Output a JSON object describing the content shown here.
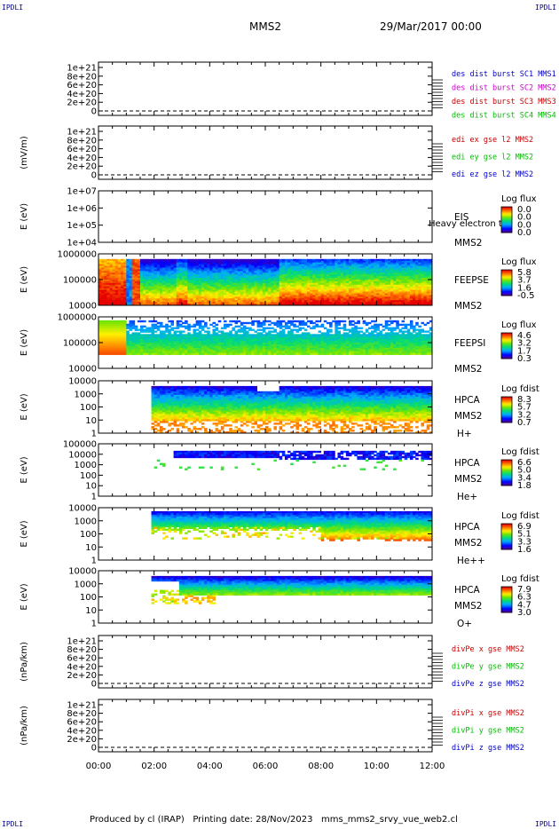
{
  "header": {
    "corner_tl": "IPDLI",
    "corner_tr": "IPDLI",
    "corner_bl": "IPDLI",
    "corner_br": "IPDLI",
    "spacecraft": "MMS2",
    "date": "29/Mar/2017 00:00"
  },
  "footer": {
    "text": "Produced by cl (IRAP)   Printing date: 28/Nov/2023   mms_mms2_srvy_vue_web2.cl"
  },
  "chart_data": {
    "type": "multi-panel",
    "x_ticks": [
      "00:00",
      "02:00",
      "04:00",
      "06:00",
      "08:00",
      "10:00",
      "12:00"
    ],
    "x_range_hours": [
      0,
      12
    ],
    "panels": [
      {
        "type": "line",
        "ylabel": "",
        "ticks": [
          "1e+21",
          "8e+20",
          "6e+20",
          "4e+20",
          "2e+20",
          "0"
        ],
        "legend": [
          {
            "name": "des dist burst SC1 MMS1",
            "color": "#0000cc"
          },
          {
            "name": "des dist burst SC2 MMS2",
            "color": "#cc00cc"
          },
          {
            "name": "des dist burst SC3 MMS3",
            "color": "#cc0000"
          },
          {
            "name": "des dist burst SC4 MMS4",
            "color": "#00bb00"
          }
        ]
      },
      {
        "type": "line",
        "ylabel": "(mV/m)",
        "ticks": [
          "1e+21",
          "8e+20",
          "6e+20",
          "4e+20",
          "2e+20",
          "0"
        ],
        "legend": [
          {
            "name": "edi ex gse l2 MMS2",
            "color": "#cc0000"
          },
          {
            "name": "edi ey gse l2 MMS2",
            "color": "#00bb00"
          },
          {
            "name": "edi ez gse l2 MMS2",
            "color": "#0000cc"
          }
        ]
      },
      {
        "type": "heatmap",
        "ylabel": "E (eV)",
        "ticks": [
          "1e+07",
          "1e+06",
          "1e+05",
          "1e+04"
        ],
        "labels": [
          "EIS",
          "MMS2"
        ],
        "overlap_label": "Heavy electron to",
        "cb_title": "Log flux",
        "cb_ticks": [
          "0.0",
          "0.0",
          "0.0",
          "0.0"
        ]
      },
      {
        "type": "heatmap",
        "ylabel": "E (eV)",
        "ticks": [
          "1000000",
          "100000",
          "10000"
        ],
        "labels": [
          "FEEPSE",
          "MMS2"
        ],
        "cb_title": "Log flux",
        "cb_ticks": [
          "5.8",
          "3.7",
          "1.6",
          "-0.5"
        ]
      },
      {
        "type": "heatmap",
        "ylabel": "E (eV)",
        "ticks": [
          "1000000",
          "100000",
          "10000"
        ],
        "labels": [
          "FEEPSI",
          "MMS2"
        ],
        "cb_title": "Log flux",
        "cb_ticks": [
          "4.6",
          "3.2",
          "1.7",
          "0.3"
        ]
      },
      {
        "type": "heatmap",
        "ylabel": "E (eV)",
        "ticks": [
          "10000",
          "1000",
          "100",
          "10",
          "1"
        ],
        "labels": [
          "HPCA",
          "MMS2",
          "H+"
        ],
        "cb_title": "Log fdist",
        "cb_ticks": [
          "8.3",
          "5.7",
          "3.2",
          "0.7"
        ]
      },
      {
        "type": "heatmap",
        "ylabel": "E (eV)",
        "ticks": [
          "100000",
          "10000",
          "1000",
          "100",
          "10",
          "1"
        ],
        "labels": [
          "HPCA",
          "MMS2",
          "He+"
        ],
        "cb_title": "Log fdist",
        "cb_ticks": [
          "6.6",
          "5.0",
          "3.4",
          "1.8"
        ]
      },
      {
        "type": "heatmap",
        "ylabel": "E (eV)",
        "ticks": [
          "10000",
          "1000",
          "100",
          "10",
          "1"
        ],
        "labels": [
          "HPCA",
          "MMS2",
          "He++"
        ],
        "cb_title": "Log fdist",
        "cb_ticks": [
          "6.9",
          "5.1",
          "3.3",
          "1.6"
        ]
      },
      {
        "type": "heatmap",
        "ylabel": "E (eV)",
        "ticks": [
          "10000",
          "1000",
          "100",
          "10",
          "1"
        ],
        "labels": [
          "HPCA",
          "MMS2",
          "O+"
        ],
        "cb_title": "Log fdist",
        "cb_ticks": [
          "7.9",
          "6.3",
          "4.7",
          "3.0"
        ]
      },
      {
        "type": "line",
        "ylabel": "(nPa/km)",
        "ticks": [
          "1e+21",
          "8e+20",
          "6e+20",
          "4e+20",
          "2e+20",
          "0"
        ],
        "legend": [
          {
            "name": "divPe x gse MMS2",
            "color": "#cc0000"
          },
          {
            "name": "divPe y gse MMS2",
            "color": "#00bb00"
          },
          {
            "name": "divPe z gse MMS2",
            "color": "#0000cc"
          }
        ]
      },
      {
        "type": "line",
        "ylabel": "(nPa/km)",
        "ticks": [
          "1e+21",
          "8e+20",
          "6e+20",
          "4e+20",
          "2e+20",
          "0"
        ],
        "legend": [
          {
            "name": "divPi x gse MMS2",
            "color": "#cc0000"
          },
          {
            "name": "divPi y gse MMS2",
            "color": "#00bb00"
          },
          {
            "name": "divPi z gse MMS2",
            "color": "#0000cc"
          }
        ]
      }
    ]
  }
}
